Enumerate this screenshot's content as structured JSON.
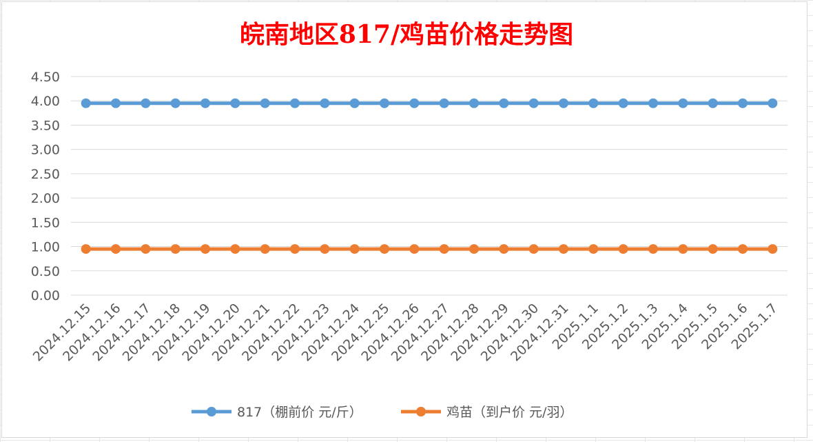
{
  "chart_data": {
    "type": "line",
    "title": "皖南地区817/鸡苗价格走势图",
    "title_color": "#ff0000",
    "xlabel": "",
    "ylabel": "",
    "ylim": [
      0,
      4.5
    ],
    "yticks": [
      "0.00",
      "0.50",
      "1.00",
      "1.50",
      "2.00",
      "2.50",
      "3.00",
      "3.50",
      "4.00",
      "4.50"
    ],
    "grid": true,
    "legend_position": "bottom",
    "categories": [
      "2024.12.15",
      "2024.12.16",
      "2024.12.17",
      "2024.12.18",
      "2024.12.19",
      "2024.12.20",
      "2024.12.21",
      "2024.12.22",
      "2024.12.23",
      "2024.12.24",
      "2024.12.25",
      "2024.12.26",
      "2024.12.27",
      "2024.12.28",
      "2024.12.29",
      "2024.12.30",
      "2024.12.31",
      "2025.1.1",
      "2025.1.2",
      "2025.1.3",
      "2025.1.4",
      "2025.1.5",
      "2025.1.6",
      "2025.1.7"
    ],
    "series": [
      {
        "name": "817（棚前价 元/斤）",
        "color": "#5b9bd5",
        "values": [
          3.95,
          3.95,
          3.95,
          3.95,
          3.95,
          3.95,
          3.95,
          3.95,
          3.95,
          3.95,
          3.95,
          3.95,
          3.95,
          3.95,
          3.95,
          3.95,
          3.95,
          3.95,
          3.95,
          3.95,
          3.95,
          3.95,
          3.95,
          3.95
        ]
      },
      {
        "name": "鸡苗（到户价 元/羽）",
        "color": "#ed7d31",
        "values": [
          0.95,
          0.95,
          0.95,
          0.95,
          0.95,
          0.95,
          0.95,
          0.95,
          0.95,
          0.95,
          0.95,
          0.95,
          0.95,
          0.95,
          0.95,
          0.95,
          0.95,
          0.95,
          0.95,
          0.95,
          0.95,
          0.95,
          0.95,
          0.95
        ]
      }
    ]
  }
}
